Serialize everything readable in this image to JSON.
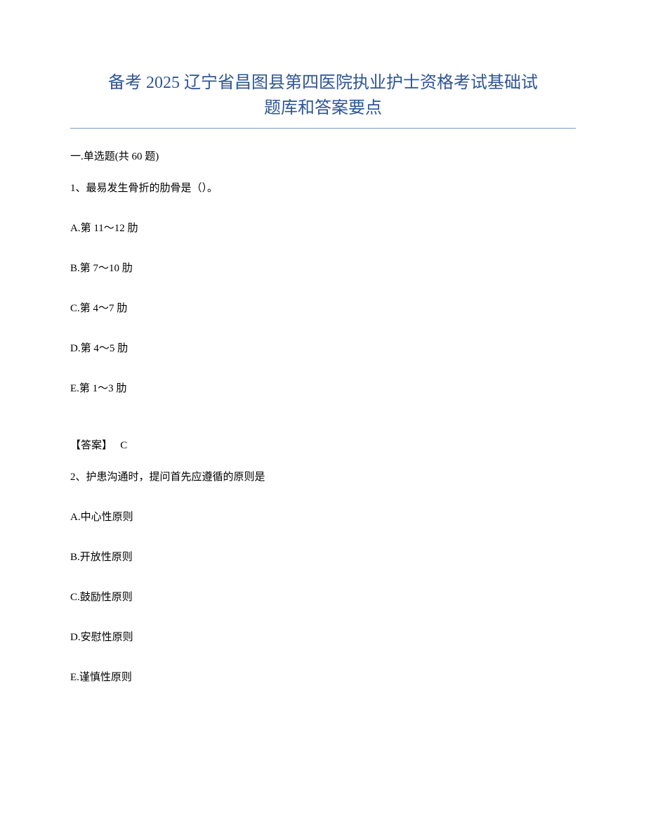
{
  "title": {
    "line1": "备考 2025 辽宁省昌图县第四医院执业护士资格考试基础试",
    "line2": "题库和答案要点",
    "color": "#2e5596",
    "fontsize": 24,
    "underline_color": "#7a9cc8"
  },
  "section": {
    "label": "一.单选题(共 60 题)"
  },
  "questions": [
    {
      "number": "1、",
      "text": "最易发生骨折的肋骨是（）。",
      "options": [
        "A.第 11～12 肋",
        "B.第 7～10 肋",
        "C.第 4～7 肋",
        "D.第 4～5 肋",
        "E.第 1～3 肋"
      ],
      "answer_label": "【答案】",
      "answer_value": "C"
    },
    {
      "number": "2、",
      "text": "护患沟通时，提问首先应遵循的原则是",
      "options": [
        "A.中心性原则",
        "B.开放性原则",
        "C.鼓励性原则",
        "D.安慰性原则",
        "E.谨慎性原则"
      ]
    }
  ],
  "styling": {
    "body_width": 920,
    "body_height": 1191,
    "background_color": "#ffffff",
    "text_color": "#000000",
    "base_fontsize": 15,
    "font_family": "SimSun",
    "padding_top": 100,
    "padding_horizontal": 100,
    "option_spacing": 36
  }
}
